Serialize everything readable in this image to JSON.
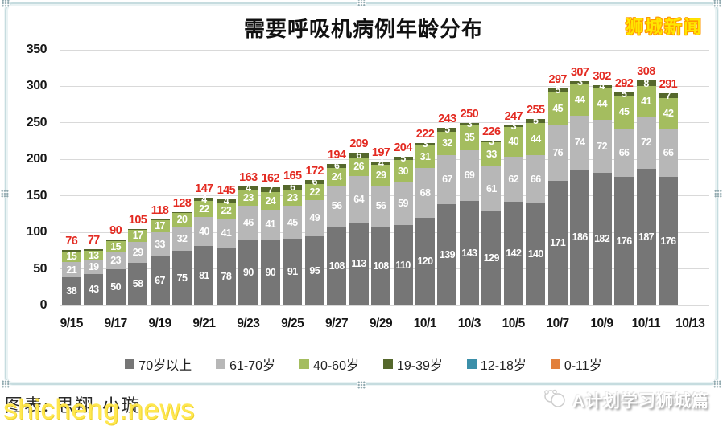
{
  "header": {
    "title": "需要呼吸机病例年龄分布",
    "logo": "狮城新闻"
  },
  "chart_data": {
    "type": "bar",
    "stacked": true,
    "title": "需要呼吸机病例年龄分布",
    "ylim": [
      0,
      350
    ],
    "yticks": [
      0,
      50,
      100,
      150,
      200,
      250,
      300,
      350
    ],
    "grid": true,
    "legend_position": "bottom",
    "slots": 29,
    "categories": [
      "9/15",
      "9/16",
      "9/17",
      "9/18",
      "9/19",
      "9/20",
      "9/21",
      "9/22",
      "9/23",
      "9/24",
      "9/25",
      "9/26",
      "9/27",
      "9/28",
      "9/29",
      "9/30",
      "10/1",
      "10/2",
      "10/3",
      "10/4",
      "10/5",
      "10/6",
      "10/7",
      "10/8",
      "10/9",
      "10/10",
      "10/11",
      "10/12"
    ],
    "xtick_labels": [
      "9/15",
      "9/17",
      "9/19",
      "9/21",
      "9/23",
      "9/25",
      "9/27",
      "9/29",
      "10/1",
      "10/3",
      "10/5",
      "10/7",
      "10/9",
      "10/11",
      "10/13"
    ],
    "series": [
      {
        "name": "70岁以上",
        "color": "#767676",
        "values": [
          38,
          43,
          50,
          58,
          67,
          75,
          81,
          78,
          90,
          90,
          91,
          95,
          108,
          113,
          108,
          110,
          120,
          139,
          143,
          129,
          142,
          140,
          171,
          186,
          182,
          176,
          187,
          176
        ]
      },
      {
        "name": "61-70岁",
        "color": "#b7b7b7",
        "values": [
          21,
          19,
          23,
          29,
          33,
          32,
          40,
          41,
          46,
          41,
          45,
          49,
          56,
          64,
          56,
          59,
          68,
          67,
          69,
          61,
          62,
          66,
          76,
          74,
          72,
          66,
          72,
          66
        ]
      },
      {
        "name": "40-60岁",
        "color": "#a4bd5f",
        "values": [
          15,
          13,
          15,
          17,
          17,
          20,
          22,
          22,
          23,
          24,
          23,
          22,
          24,
          26,
          29,
          30,
          31,
          32,
          35,
          33,
          40,
          44,
          45,
          44,
          44,
          45,
          41,
          42
        ]
      },
      {
        "name": "19-39岁",
        "color": "#55682c",
        "values": [
          2,
          2,
          2,
          1,
          1,
          1,
          4,
          4,
          4,
          7,
          6,
          6,
          6,
          6,
          4,
          5,
          3,
          5,
          3,
          3,
          3,
          5,
          5,
          3,
          4,
          5,
          8,
          7
        ]
      },
      {
        "name": "12-18岁",
        "color": "#3b8fa9",
        "values": [
          0,
          0,
          0,
          0,
          0,
          0,
          0,
          0,
          0,
          0,
          0,
          0,
          0,
          0,
          0,
          0,
          0,
          0,
          0,
          0,
          0,
          0,
          0,
          0,
          0,
          0,
          0,
          0
        ]
      },
      {
        "name": "0-11岁",
        "color": "#e2803c",
        "values": [
          0,
          0,
          0,
          0,
          0,
          0,
          0,
          0,
          0,
          0,
          0,
          0,
          0,
          0,
          0,
          0,
          0,
          0,
          0,
          0,
          0,
          0,
          0,
          0,
          0,
          0,
          0,
          0
        ]
      }
    ],
    "totals": [
      76,
      77,
      90,
      105,
      118,
      128,
      147,
      145,
      163,
      162,
      165,
      172,
      194,
      209,
      197,
      204,
      222,
      243,
      250,
      226,
      247,
      255,
      297,
      307,
      302,
      292,
      308,
      291
    ],
    "total_color": "#e32b22",
    "segment_label_color": "#ffffff",
    "segment_label_min": 3,
    "grid_color": "#d9d9d9"
  },
  "footer": {
    "credit": "图表:  思翔·小璇",
    "watermark": "shicheng.news",
    "channel": "A计划学习狮城篇"
  }
}
